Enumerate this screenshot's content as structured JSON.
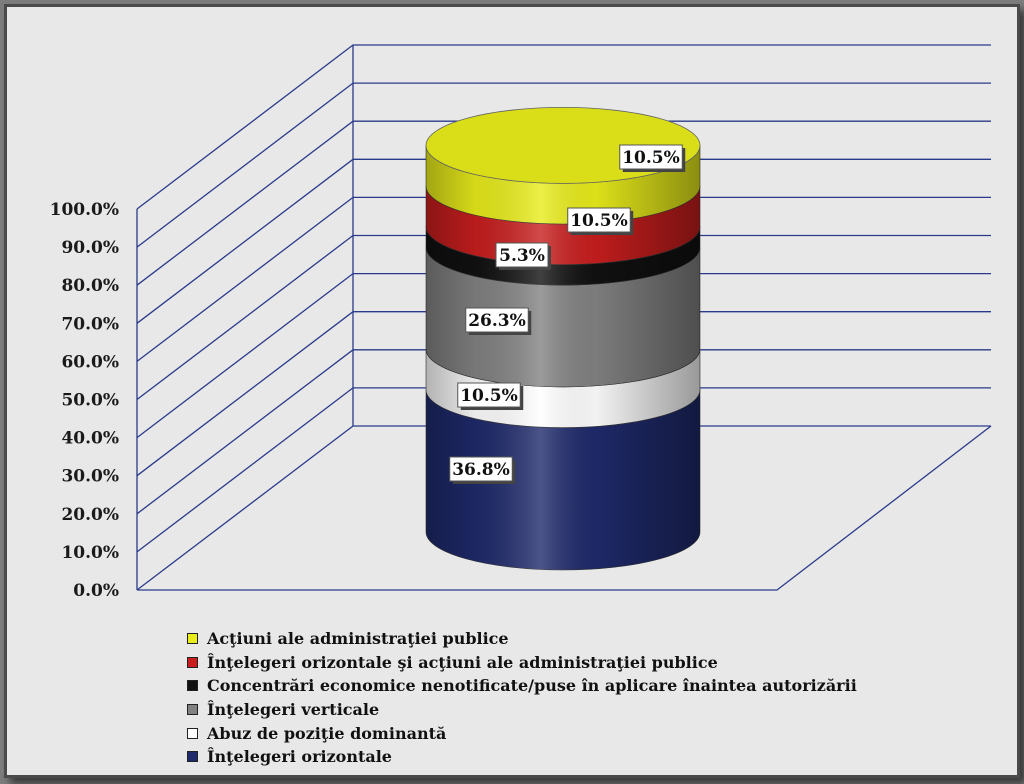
{
  "chart_data": {
    "type": "bar",
    "subtype": "3d-stacked-cylinder",
    "title": "",
    "xlabel": "",
    "ylabel": "",
    "ylim": [
      0,
      100
    ],
    "y_ticks": [
      "0.0%",
      "10.0%",
      "20.0%",
      "30.0%",
      "40.0%",
      "50.0%",
      "60.0%",
      "70.0%",
      "80.0%",
      "90.0%",
      "100.0%"
    ],
    "grid": true,
    "legend_position": "bottom",
    "series": [
      {
        "name": "Înţelegeri orizontale",
        "value": 36.8,
        "label": "36.8%",
        "color": "#1f2a6b"
      },
      {
        "name": "Abuz de poziţie dominantă",
        "value": 10.5,
        "label": "10.5%",
        "color": "#ffffff"
      },
      {
        "name": "Înţelegeri verticale",
        "value": 26.3,
        "label": "26.3%",
        "color": "#828282"
      },
      {
        "name": "Concentrări economice nenotificate/puse în aplicare înaintea autorizării",
        "value": 5.3,
        "label": "5.3%",
        "color": "#111111"
      },
      {
        "name": "Înţelegeri orizontale şi acţiuni ale administraţiei publice",
        "value": 10.5,
        "label": "10.5%",
        "color": "#c81e1e"
      },
      {
        "name": "Acţiuni ale administraţiei publice",
        "value": 10.5,
        "label": "10.5%",
        "color": "#e8ec1a"
      }
    ],
    "legend_order": [
      5,
      4,
      3,
      2,
      1,
      0
    ]
  }
}
